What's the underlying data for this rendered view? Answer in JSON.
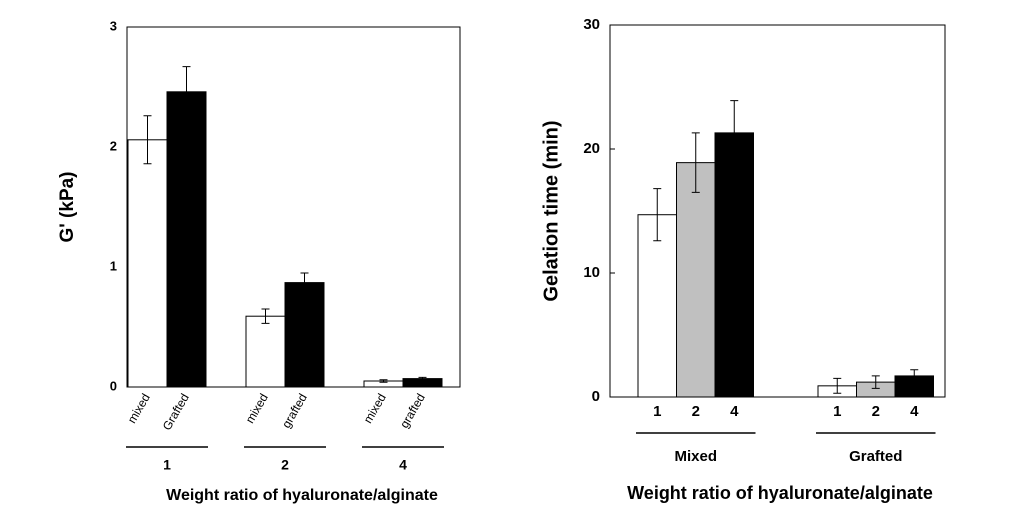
{
  "chart_data": [
    {
      "type": "bar",
      "y_label": "G' (kPa)",
      "x_label": "Weight ratio of hyaluronate/alginate",
      "categories": [
        "1",
        "2",
        "4"
      ],
      "ylim": [
        0,
        3
      ],
      "yticks": [
        0,
        1,
        2,
        3
      ],
      "series": [
        {
          "color": "#ffffff",
          "values": [
            2.06,
            0.59,
            0.05
          ],
          "errors": [
            0.2,
            0.06,
            0.01
          ],
          "labels": [
            "mixed",
            "mixed",
            "mixed"
          ]
        },
        {
          "color": "#000000",
          "values": [
            2.46,
            0.87,
            0.07
          ],
          "errors": [
            0.21,
            0.08,
            0.01
          ],
          "labels": [
            "Grafted",
            "grafted",
            "grafted"
          ]
        }
      ]
    },
    {
      "type": "bar",
      "y_label": "Gelation time (min)",
      "x_label": "Weight ratio of hyaluronate/alginate",
      "categories": [
        "Mixed",
        "Grafted"
      ],
      "ylim": [
        0,
        30
      ],
      "yticks": [
        0,
        10,
        20,
        30
      ],
      "series": [
        {
          "color": "#ffffff",
          "values": [
            14.7,
            0.9
          ],
          "errors": [
            2.1,
            0.6
          ],
          "labels": [
            "1",
            "1"
          ]
        },
        {
          "color": "#c0c0c0",
          "values": [
            18.9,
            1.2
          ],
          "errors": [
            2.4,
            0.5
          ],
          "labels": [
            "2",
            "2"
          ]
        },
        {
          "color": "#000000",
          "values": [
            21.3,
            1.7
          ],
          "errors": [
            2.6,
            0.5
          ],
          "labels": [
            "4",
            "4"
          ]
        }
      ]
    }
  ]
}
